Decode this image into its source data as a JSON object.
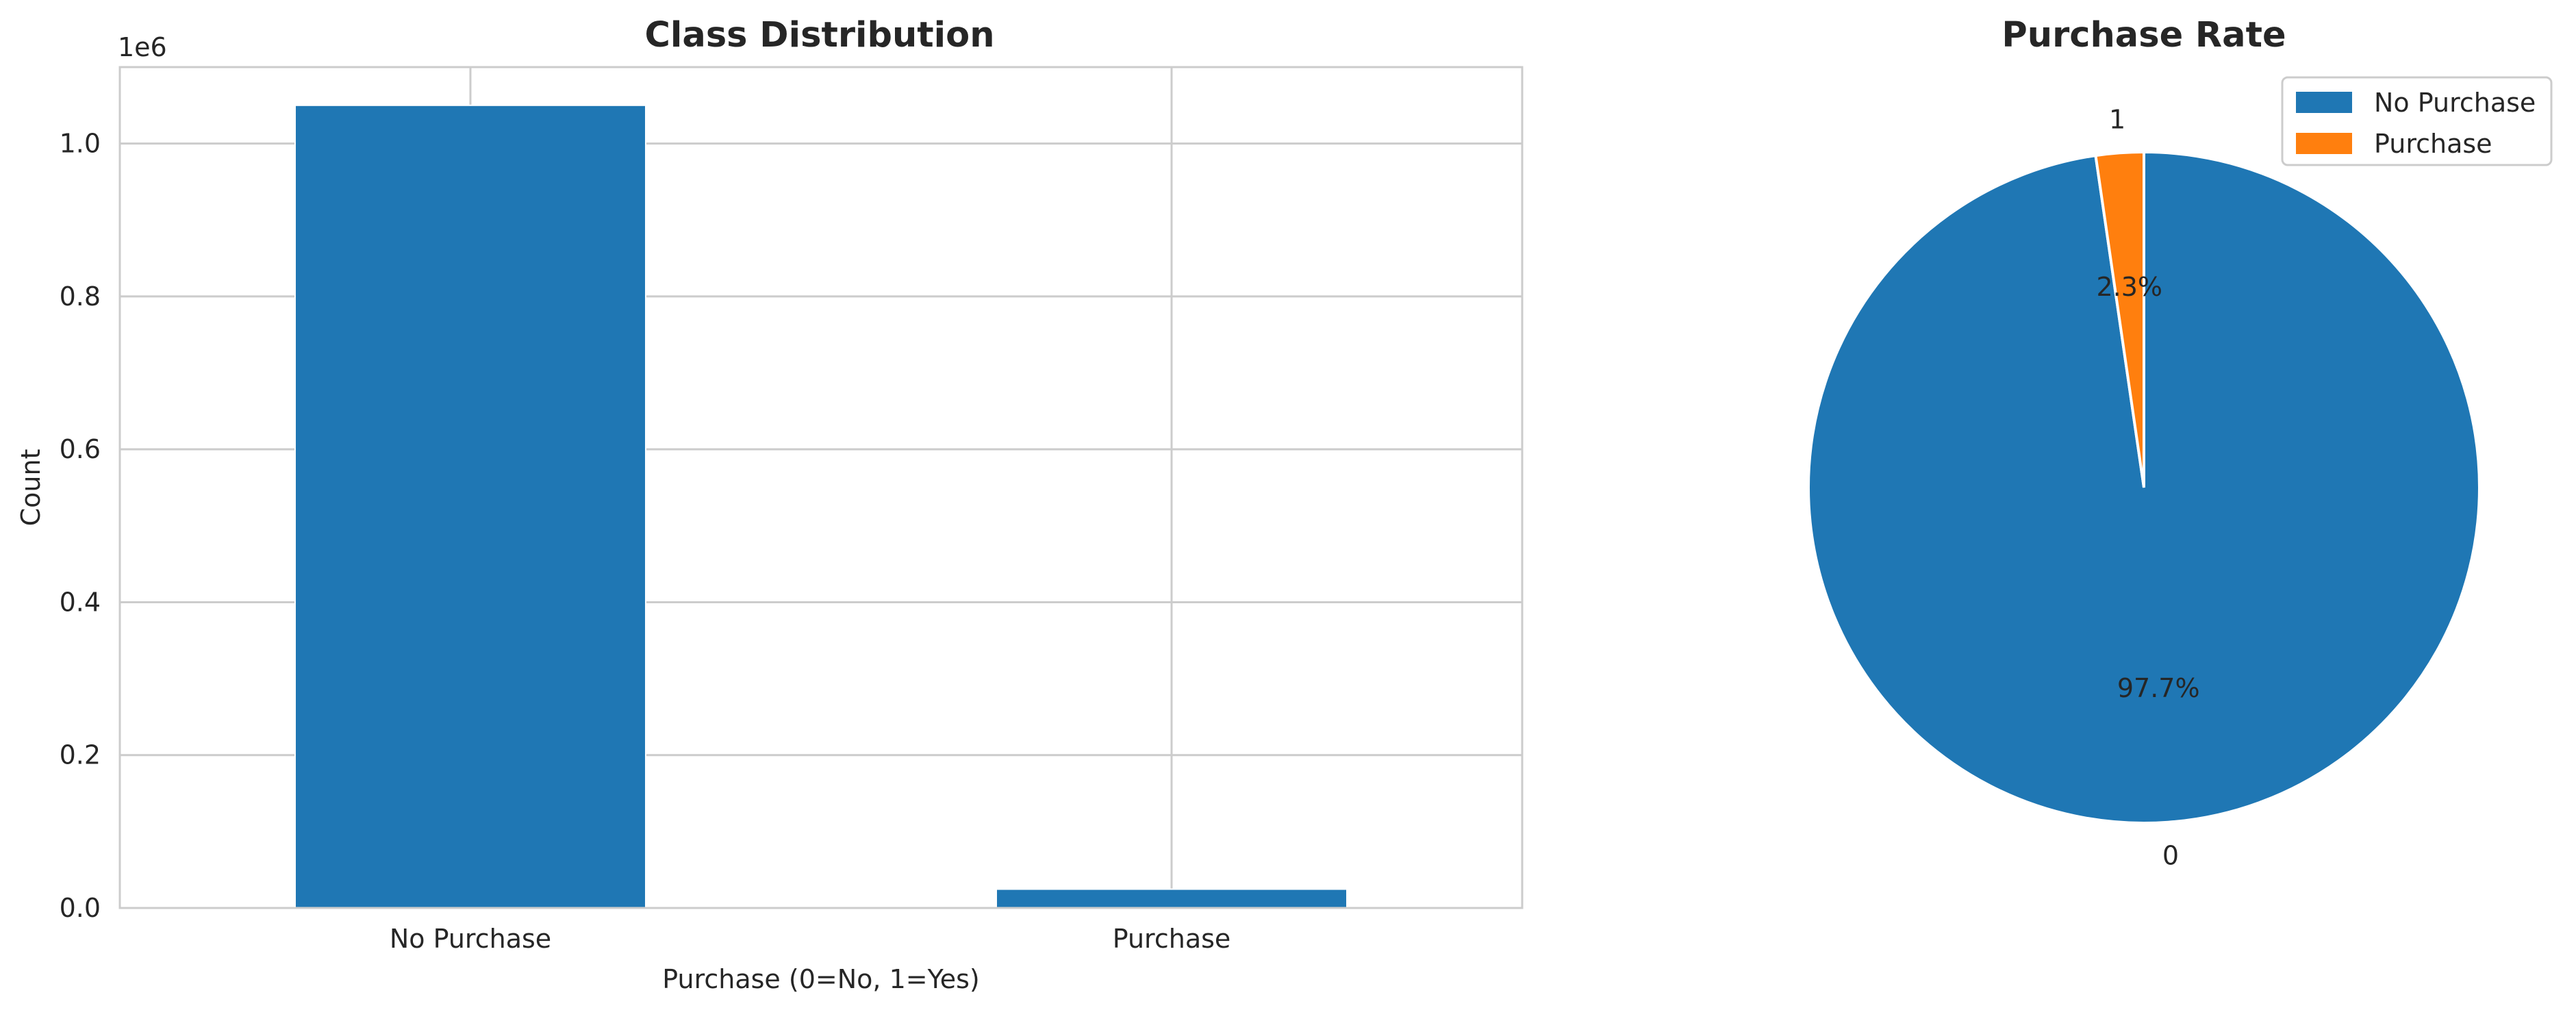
{
  "chart_data": [
    {
      "type": "bar",
      "title": "Class Distribution",
      "xlabel": "Purchase (0=No, 1=Yes)",
      "ylabel": "Count",
      "y_offset_text": "1e6",
      "categories": [
        "No Purchase",
        "Purchase"
      ],
      "values": [
        1050000,
        24600
      ],
      "ylim": [
        0,
        1100000
      ],
      "yticks": [
        0,
        200000,
        400000,
        600000,
        800000,
        1000000
      ],
      "ytick_labels": [
        "0.0",
        "0.2",
        "0.4",
        "0.6",
        "0.8",
        "1.0"
      ],
      "grid": true,
      "colors": [
        "#1f77b4",
        "#1f77b4"
      ]
    },
    {
      "type": "pie",
      "title": "Purchase Rate",
      "slice_labels": [
        "0",
        "1"
      ],
      "values": [
        97.7,
        2.3
      ],
      "pct_labels": [
        "97.7%",
        "2.3%"
      ],
      "legend": [
        "No Purchase",
        "Purchase"
      ],
      "legend_position": "top-right",
      "colors": [
        "#1f77b4",
        "#ff7f0e"
      ]
    }
  ]
}
